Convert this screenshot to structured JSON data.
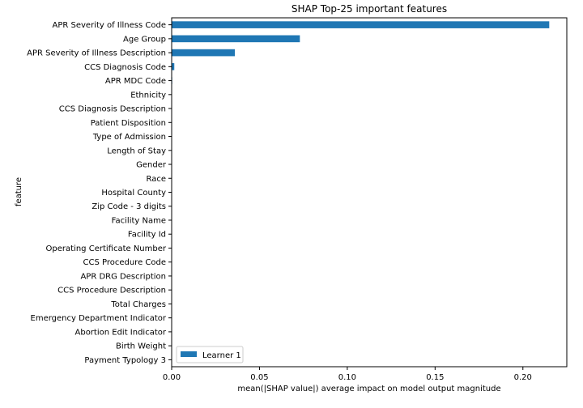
{
  "chart_data": {
    "type": "bar",
    "orientation": "horizontal",
    "title": "SHAP Top-25 important features",
    "xlabel": "mean(|SHAP value|) average impact on model output magnitude",
    "ylabel": "feature",
    "xlim": [
      0,
      0.225
    ],
    "xticks": [
      0,
      0.05,
      0.1,
      0.15,
      0.2
    ],
    "xtick_labels": [
      "0.00",
      "0.05",
      "0.10",
      "0.15",
      "0.20"
    ],
    "grid": false,
    "legend_position": "lower-left",
    "categories": [
      "APR Severity of Illness Code",
      "Age Group",
      "APR Severity of Illness Description",
      "CCS Diagnosis Code",
      "APR MDC Code",
      "Ethnicity",
      "CCS Diagnosis Description",
      "Patient Disposition",
      "Type of Admission",
      "Length of Stay",
      "Gender",
      "Race",
      "Hospital County",
      "Zip Code - 3 digits",
      "Facility Name",
      "Facility Id",
      "Operating Certificate Number",
      "CCS Procedure Code",
      "APR DRG Description",
      "CCS Procedure Description",
      "Total Charges",
      "Emergency Department Indicator",
      "Abortion Edit Indicator",
      "Birth Weight",
      "Payment Typology 3"
    ],
    "series": [
      {
        "name": "Learner 1",
        "color": "#1f77b4",
        "values": [
          0.215,
          0.073,
          0.036,
          0.0015,
          0.0003,
          0.0002,
          0.0002,
          0.0001,
          0.0001,
          0.0001,
          0.0001,
          0.0001,
          0.0001,
          0.0001,
          0.0001,
          0.0001,
          0.0001,
          0.0001,
          0.0001,
          0.0001,
          0.0001,
          0.0001,
          0.0001,
          0.0001,
          0.0001
        ]
      }
    ]
  }
}
